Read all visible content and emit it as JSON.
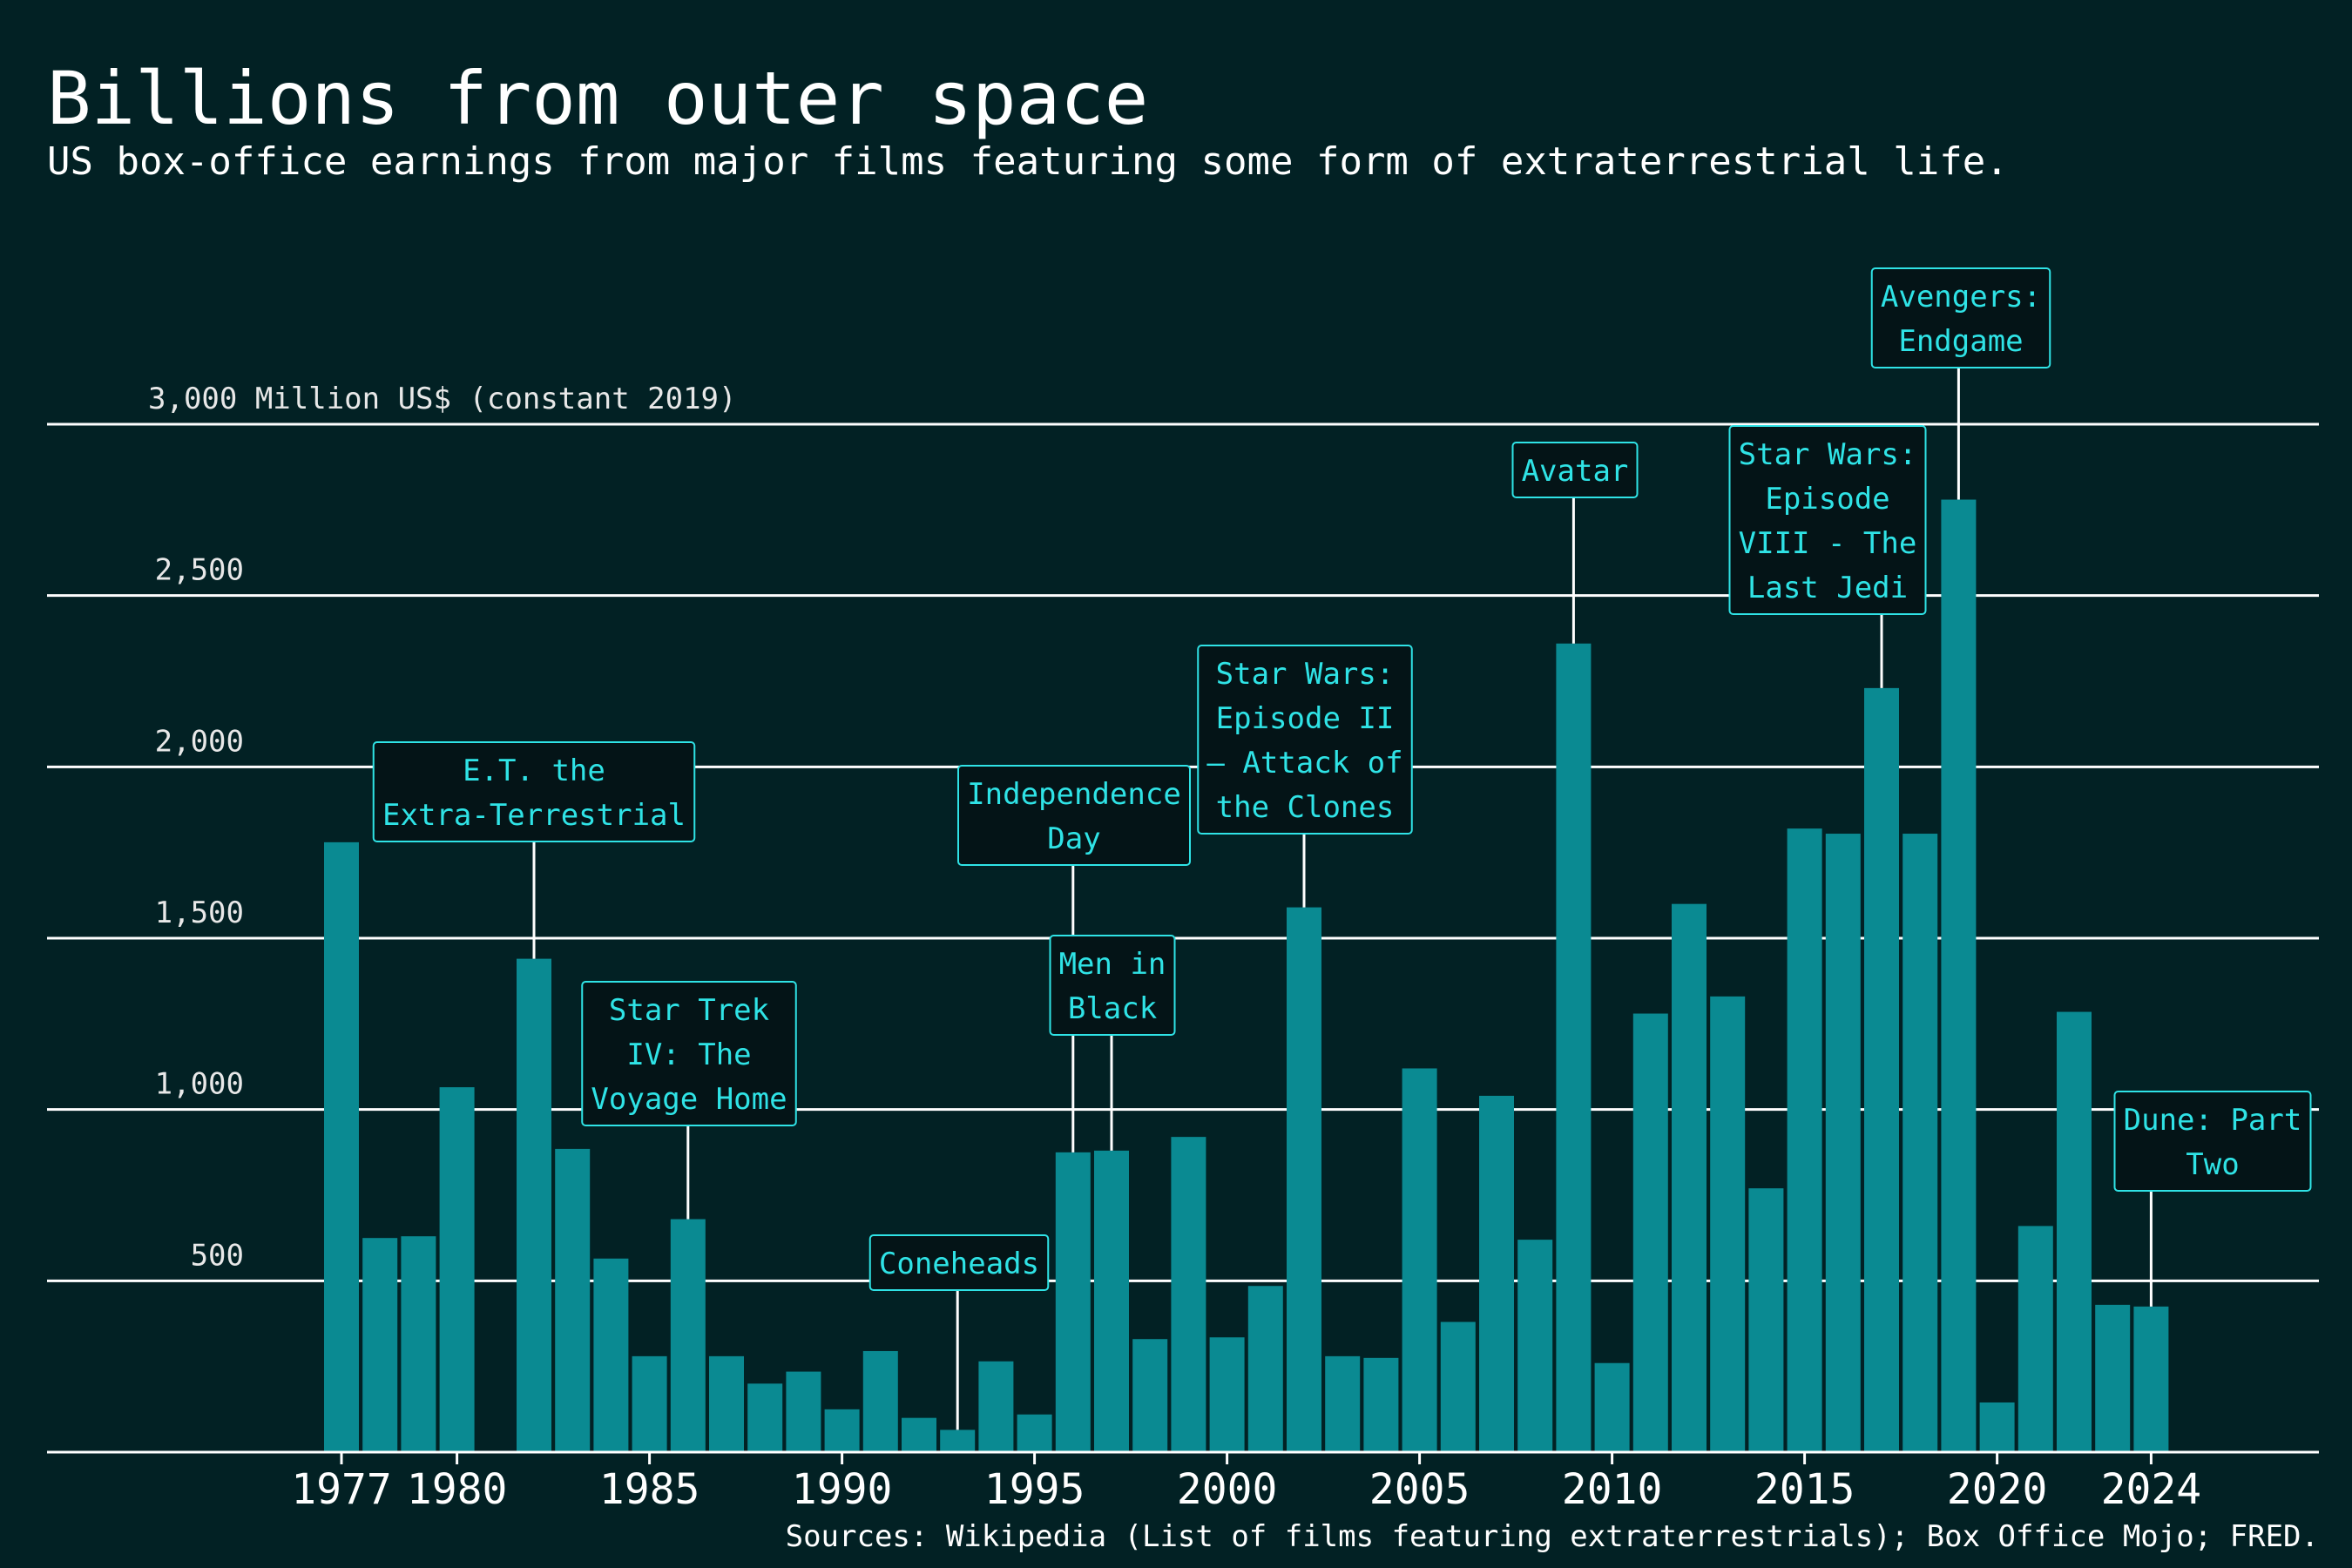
{
  "chart_data": {
    "type": "bar",
    "title": "Billions from outer space",
    "subtitle": "US box-office earnings from major films featuring some form of extraterrestrial life.",
    "ylabel": "3,000 Million US$ (constant 2019)",
    "source": "Sources: Wikipedia (List of films featuring extraterrestrials); Box Office Mojo; FRED.",
    "ylim": [
      0,
      3000
    ],
    "y_ticks": [
      {
        "value": 500,
        "label": "500"
      },
      {
        "value": 1000,
        "label": "1,000"
      },
      {
        "value": 1500,
        "label": "1,500"
      },
      {
        "value": 2000,
        "label": "2,000"
      },
      {
        "value": 2500,
        "label": "2,500"
      },
      {
        "value": 3000,
        "label": "3,000 Million US$ (constant 2019)"
      }
    ],
    "x_ticks": [
      1977,
      1980,
      1985,
      1990,
      1995,
      2000,
      2005,
      2010,
      2015,
      2020,
      2024
    ],
    "x_tick_labels": [
      "1977",
      "1980",
      "1985",
      "1990",
      "1995",
      "2000",
      "2005",
      "2010",
      "2015",
      "2020",
      "2024"
    ],
    "x": [
      1977,
      1978,
      1979,
      1980,
      1982,
      1983,
      1984,
      1985,
      1986,
      1987,
      1988,
      1989,
      1990,
      1991,
      1992,
      1993,
      1994,
      1995,
      1996,
      1997,
      1998,
      1999,
      2000,
      2001,
      2002,
      2003,
      2004,
      2005,
      2006,
      2007,
      2008,
      2009,
      2010,
      2011,
      2012,
      2013,
      2014,
      2015,
      2016,
      2017,
      2018,
      2019,
      2020,
      2021,
      2022,
      2023,
      2024
    ],
    "values": [
      1780,
      625,
      630,
      1065,
      1440,
      885,
      565,
      280,
      680,
      280,
      200,
      235,
      125,
      295,
      100,
      65,
      265,
      110,
      875,
      880,
      330,
      920,
      335,
      485,
      1590,
      280,
      275,
      1120,
      380,
      1040,
      620,
      2360,
      260,
      1280,
      1600,
      1330,
      770,
      1820,
      1805,
      2230,
      1805,
      2780,
      145,
      660,
      1285,
      430,
      425
    ],
    "bar_color": "#0a8a92",
    "annotations": [
      {
        "year": 1982,
        "lines": [
          "E.T. the",
          "Extra-Terrestrial"
        ]
      },
      {
        "year": 1986,
        "lines": [
          "Star Trek",
          "IV: The",
          "Voyage Home"
        ]
      },
      {
        "year": 1993,
        "lines": [
          "Coneheads"
        ]
      },
      {
        "year": 1996,
        "lines": [
          "Independence",
          "Day"
        ]
      },
      {
        "year": 1997,
        "lines": [
          "Men in",
          "Black"
        ]
      },
      {
        "year": 2002,
        "lines": [
          "Star Wars:",
          "Episode II",
          "– Attack of",
          "the Clones"
        ]
      },
      {
        "year": 2009,
        "lines": [
          "Avatar"
        ]
      },
      {
        "year": 2017,
        "lines": [
          "Star Wars:",
          "Episode",
          "VIII - The",
          "Last Jedi"
        ]
      },
      {
        "year": 2019,
        "lines": [
          "Avengers:",
          "Endgame"
        ]
      },
      {
        "year": 2024,
        "lines": [
          "Dune: Part",
          "Two"
        ]
      }
    ],
    "annotation_color": "#2fe3e6",
    "background": "#022124"
  }
}
